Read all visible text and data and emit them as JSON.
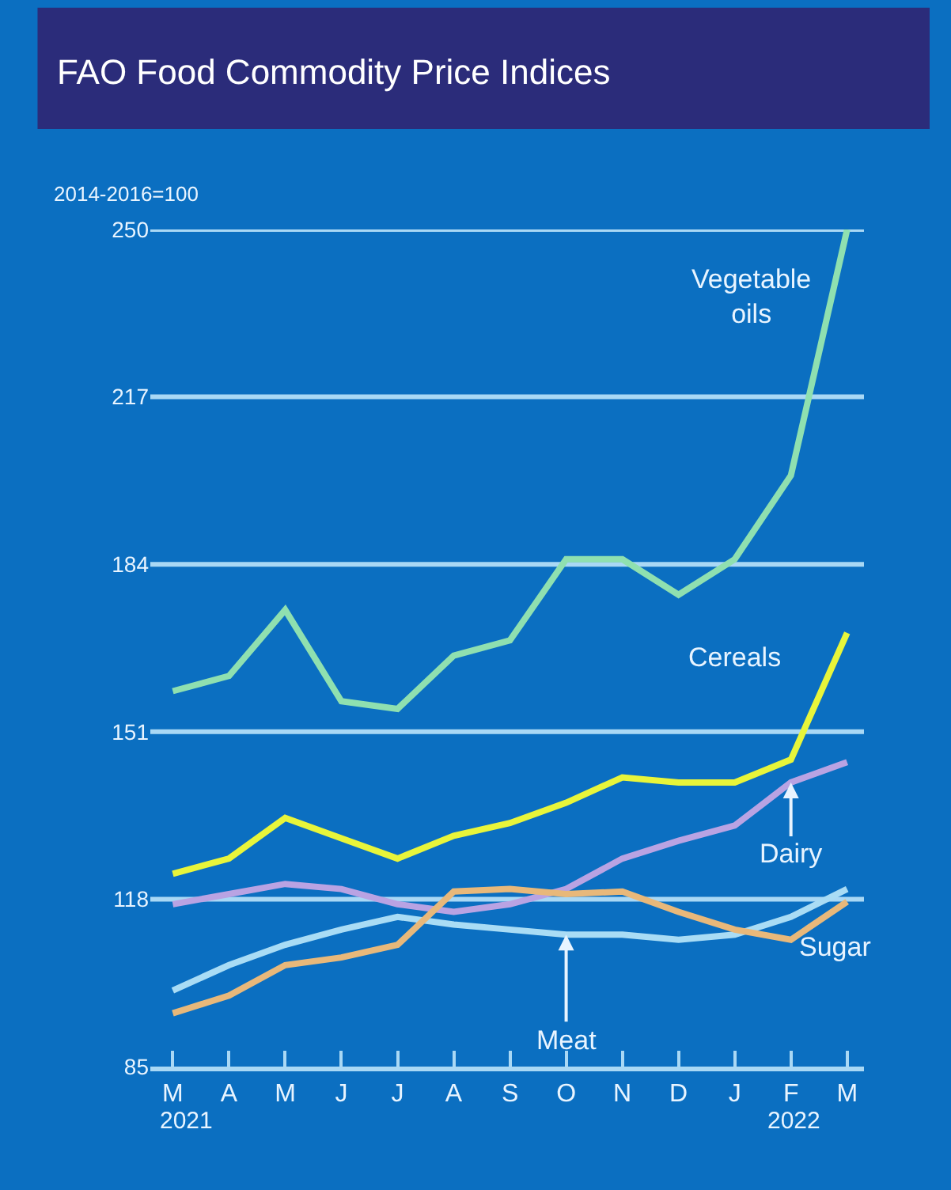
{
  "chart_data": {
    "type": "line",
    "title": "FAO Food Commodity Price Indices",
    "ylabel": "2014-2016=100",
    "categories": [
      "M",
      "A",
      "M",
      "J",
      "J",
      "A",
      "S",
      "O",
      "N",
      "D",
      "J",
      "F",
      "M"
    ],
    "series": [
      {
        "name": "Vegetable oils",
        "color": "#8fe0b0",
        "values": [
          159,
          162,
          175,
          157,
          155.5,
          166,
          169,
          185,
          185,
          178,
          185,
          201.5,
          250
        ]
      },
      {
        "name": "Cereals",
        "color": "#e8f53a",
        "values": [
          123,
          126,
          134,
          130,
          126,
          130.5,
          133,
          137,
          142,
          141,
          141,
          145.5,
          170.5
        ]
      },
      {
        "name": "Dairy",
        "color": "#b9a3e3",
        "values": [
          117,
          119,
          121,
          120,
          117,
          115.5,
          117,
          120,
          126,
          129.5,
          132.5,
          141,
          145
        ]
      },
      {
        "name": "Meat",
        "color": "#a9dcf5",
        "values": [
          100,
          105,
          109,
          112,
          114.5,
          113,
          112,
          111,
          111,
          110,
          111,
          114.5,
          120
        ]
      },
      {
        "name": "Sugar",
        "color": "#e8b87a",
        "values": [
          95.5,
          99,
          105,
          106.5,
          109,
          119.5,
          120,
          119,
          119.5,
          115.5,
          112,
          110,
          117.5
        ]
      }
    ],
    "ylim": [
      85,
      250
    ],
    "yticks": [
      85,
      118,
      151,
      184,
      217,
      250
    ],
    "grid": "y",
    "legend": false,
    "marker": "none",
    "line_style": "solid",
    "annotations": [
      "2021",
      "2022"
    ]
  }
}
